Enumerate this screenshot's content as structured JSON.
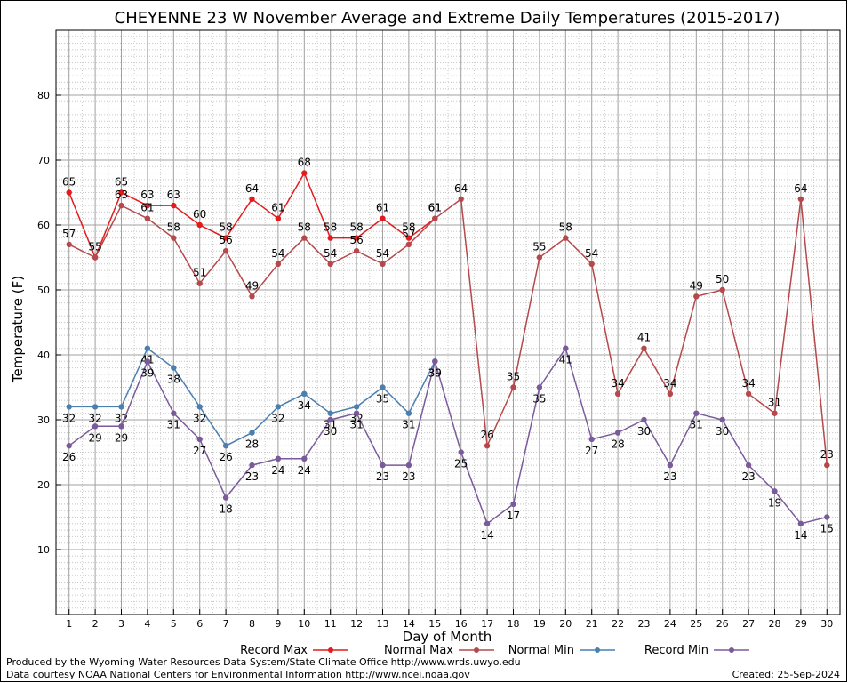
{
  "chart_data": {
    "type": "line",
    "title": "CHEYENNE 23 W November Average and Extreme Daily Temperatures (2015-2017)",
    "xlabel": "Day of Month",
    "ylabel": "Temperature (F)",
    "xlim": [
      0.5,
      30.5
    ],
    "ylim": [
      0,
      90
    ],
    "x_ticks": [
      1,
      2,
      3,
      4,
      5,
      6,
      7,
      8,
      9,
      10,
      11,
      12,
      13,
      14,
      15,
      16,
      17,
      18,
      19,
      20,
      21,
      22,
      23,
      24,
      25,
      26,
      27,
      28,
      29,
      30
    ],
    "y_ticks": [
      10,
      20,
      30,
      40,
      50,
      60,
      70,
      80
    ],
    "grid": true,
    "legend_position": "bottom",
    "series": [
      {
        "name": "Record Max",
        "color": "#e41a1c",
        "x": [
          1,
          2,
          3,
          4,
          5,
          6,
          7,
          8,
          9,
          10,
          11,
          12,
          13,
          14,
          15
        ],
        "values": [
          65,
          55,
          65,
          63,
          63,
          60,
          58,
          64,
          61,
          68,
          58,
          58,
          61,
          58,
          61
        ]
      },
      {
        "name": "Normal Max",
        "color": "#b5484b",
        "x": [
          1,
          2,
          3,
          4,
          5,
          6,
          7,
          8,
          9,
          10,
          11,
          12,
          13,
          14,
          15,
          16,
          17,
          18,
          19,
          20,
          21,
          22,
          23,
          24,
          25,
          26,
          27,
          28,
          29,
          30
        ],
        "values": [
          57,
          55,
          63,
          61,
          58,
          51,
          56,
          49,
          54,
          58,
          54,
          56,
          54,
          57,
          61,
          64,
          26,
          35,
          55,
          58,
          54,
          34,
          41,
          34,
          49,
          50,
          34,
          31,
          64,
          23
        ]
      },
      {
        "name": "Normal Min",
        "color": "#4a7fb0",
        "x": [
          1,
          2,
          3,
          4,
          5,
          6,
          7,
          8,
          9,
          10,
          11,
          12,
          13,
          14,
          15
        ],
        "values": [
          32,
          32,
          32,
          41,
          38,
          32,
          26,
          28,
          32,
          34,
          31,
          32,
          35,
          31,
          39
        ]
      },
      {
        "name": "Record Min",
        "color": "#7a5a9b",
        "x": [
          1,
          2,
          3,
          4,
          5,
          6,
          7,
          8,
          9,
          10,
          11,
          12,
          13,
          14,
          15,
          16,
          17,
          18,
          19,
          20,
          21,
          22,
          23,
          24,
          25,
          26,
          27,
          28,
          29,
          30
        ],
        "values": [
          26,
          29,
          29,
          39,
          31,
          27,
          18,
          23,
          24,
          24,
          30,
          31,
          23,
          23,
          39,
          25,
          14,
          17,
          35,
          41,
          27,
          28,
          30,
          23,
          31,
          30,
          23,
          19,
          14,
          15
        ]
      }
    ]
  },
  "footer": {
    "credit_line1": "Produced by the Wyoming Water Resources Data System/State Climate Office http://www.wrds.uwyo.edu",
    "credit_line2": "Data courtesy NOAA National Centers for Environmental Information http://www.ncei.noaa.gov",
    "created": "Created:  25-Sep-2024"
  }
}
